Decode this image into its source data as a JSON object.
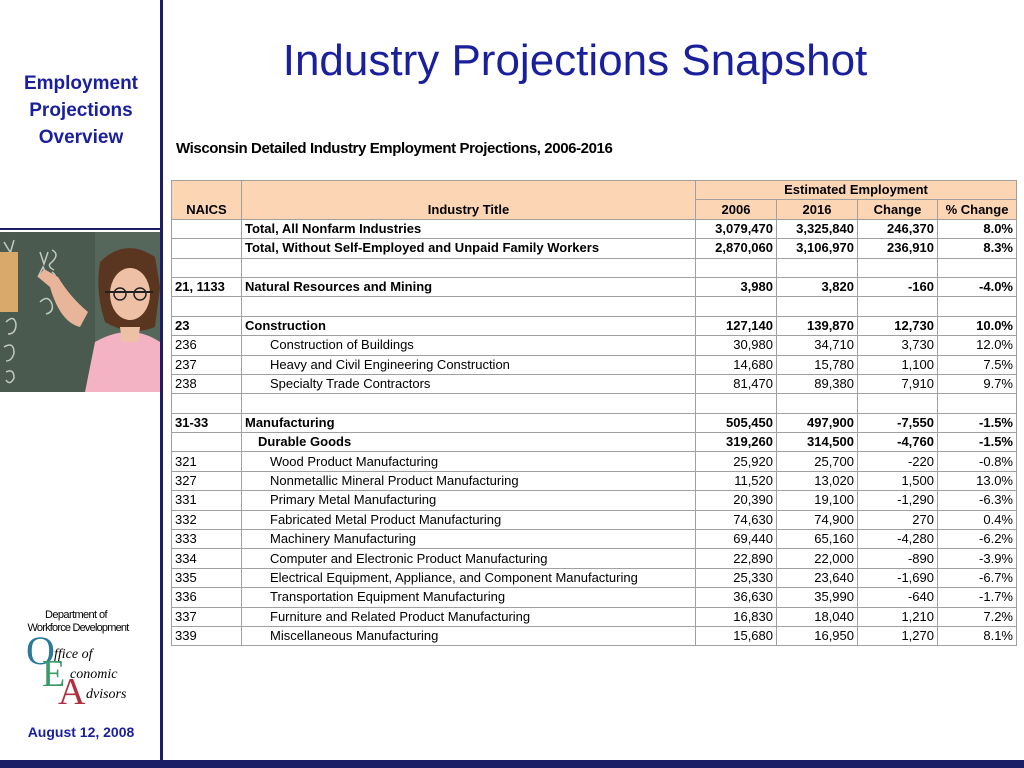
{
  "sidebar": {
    "title_lines": [
      "Employment",
      "Projections",
      "Overview"
    ],
    "date": "August 12, 2008",
    "logo": {
      "line1": "Department of",
      "line2": "Workforce Development",
      "office": "Office of Economic Advisors"
    }
  },
  "title": "Industry Projections Snapshot",
  "subtitle": "Wisconsin Detailed Industry Employment Projections, 2006-2016",
  "table": {
    "headers": {
      "naics": "NAICS",
      "industry": "Industry Title",
      "group": "Estimated Employment",
      "y2006": "2006",
      "y2016": "2016",
      "change": "Change",
      "pct": "% Change"
    },
    "rows": [
      {
        "naics": "",
        "title": "Total, All Nonfarm Industries",
        "v2006": "3,079,470",
        "v2016": "3,325,840",
        "change": "246,370",
        "pct": "8.0%"
      },
      {
        "naics": "",
        "title": "Total, Without Self-Employed and Unpaid Family Workers",
        "v2006": "2,870,060",
        "v2016": "3,106,970",
        "change": "236,910",
        "pct": "8.3%"
      },
      {
        "naics": "",
        "title": "",
        "v2006": "",
        "v2016": "",
        "change": "",
        "pct": ""
      },
      {
        "naics": "21, 1133",
        "title": "Natural Resources and Mining",
        "v2006": "3,980",
        "v2016": "3,820",
        "change": "-160",
        "pct": "-4.0%"
      },
      {
        "naics": "",
        "title": "",
        "v2006": "",
        "v2016": "",
        "change": "",
        "pct": ""
      },
      {
        "naics": "23",
        "title": "Construction",
        "v2006": "127,140",
        "v2016": "139,870",
        "change": "12,730",
        "pct": "10.0%"
      },
      {
        "naics": "236",
        "title": "Construction of Buildings",
        "v2006": "30,980",
        "v2016": "34,710",
        "change": "3,730",
        "pct": "12.0%"
      },
      {
        "naics": "237",
        "title": "Heavy and Civil Engineering Construction",
        "v2006": "14,680",
        "v2016": "15,780",
        "change": "1,100",
        "pct": "7.5%"
      },
      {
        "naics": "238",
        "title": "Specialty Trade Contractors",
        "v2006": "81,470",
        "v2016": "89,380",
        "change": "7,910",
        "pct": "9.7%"
      },
      {
        "naics": "",
        "title": "",
        "v2006": "",
        "v2016": "",
        "change": "",
        "pct": ""
      },
      {
        "naics": "31-33",
        "title": "Manufacturing",
        "v2006": "505,450",
        "v2016": "497,900",
        "change": "-7,550",
        "pct": "-1.5%"
      },
      {
        "naics": "",
        "title": "Durable Goods",
        "v2006": "319,260",
        "v2016": "314,500",
        "change": "-4,760",
        "pct": "-1.5%"
      },
      {
        "naics": "321",
        "title": "Wood Product Manufacturing",
        "v2006": "25,920",
        "v2016": "25,700",
        "change": "-220",
        "pct": "-0.8%"
      },
      {
        "naics": "327",
        "title": "Nonmetallic Mineral Product Manufacturing",
        "v2006": "11,520",
        "v2016": "13,020",
        "change": "1,500",
        "pct": "13.0%"
      },
      {
        "naics": "331",
        "title": "Primary Metal Manufacturing",
        "v2006": "20,390",
        "v2016": "19,100",
        "change": "-1,290",
        "pct": "-6.3%"
      },
      {
        "naics": "332",
        "title": "Fabricated Metal Product Manufacturing",
        "v2006": "74,630",
        "v2016": "74,900",
        "change": "270",
        "pct": "0.4%"
      },
      {
        "naics": "333",
        "title": "Machinery Manufacturing",
        "v2006": "69,440",
        "v2016": "65,160",
        "change": "-4,280",
        "pct": "-6.2%"
      },
      {
        "naics": "334",
        "title": "Computer and Electronic Product Manufacturing",
        "v2006": "22,890",
        "v2016": "22,000",
        "change": "-890",
        "pct": "-3.9%"
      },
      {
        "naics": "335",
        "title": "Electrical Equipment, Appliance, and Component Manufacturing",
        "v2006": "25,330",
        "v2016": "23,640",
        "change": "-1,690",
        "pct": "-6.7%"
      },
      {
        "naics": "336",
        "title": "Transportation Equipment Manufacturing",
        "v2006": "36,630",
        "v2016": "35,990",
        "change": "-640",
        "pct": "-1.7%"
      },
      {
        "naics": "337",
        "title": "Furniture and Related Product Manufacturing",
        "v2006": "16,830",
        "v2016": "18,040",
        "change": "1,210",
        "pct": "7.2%"
      },
      {
        "naics": "339",
        "title": "Miscellaneous Manufacturing",
        "v2006": "15,680",
        "v2016": "16,950",
        "change": "1,270",
        "pct": "8.1%"
      }
    ]
  },
  "colors": {
    "navy": "#1a1f66",
    "title_blue": "#1a1f9c",
    "header_fill": "#fcd5b4"
  },
  "icons": {
    "photo": "teacher-at-chalkboard-photo",
    "logo": "oea-logo"
  }
}
